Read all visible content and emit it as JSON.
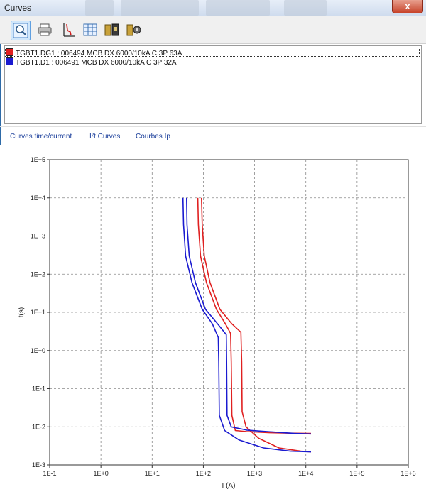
{
  "window": {
    "title": "Curves",
    "close_label": "x"
  },
  "toolbar": {
    "items": [
      {
        "name": "zoom-icon",
        "active": true
      },
      {
        "name": "print-icon",
        "active": false
      },
      {
        "name": "chart-icon",
        "active": false
      },
      {
        "name": "grid-icon",
        "active": false
      },
      {
        "name": "export-icon",
        "active": false
      },
      {
        "name": "settings-icon",
        "active": false
      }
    ]
  },
  "devices": [
    {
      "label": "TGBT1.DG1 : 006494 MCB DX 6000/10kA C 3P 63A",
      "color": "#e02020",
      "selected": true
    },
    {
      "label": "TGBT1.D1 : 006491 MCB DX 6000/10kA C 3P 32A",
      "color": "#1a1ad0",
      "selected": false
    }
  ],
  "tabs": [
    {
      "label": "Curves time/current"
    },
    {
      "label": "I²t Curves"
    },
    {
      "label": "Courbes Ip"
    }
  ],
  "chart_data": {
    "type": "line",
    "xlabel": "I (A)",
    "ylabel": "t(s)",
    "xscale": "log",
    "yscale": "log",
    "xlim": [
      0.1,
      1000000
    ],
    "ylim": [
      0.001,
      100000
    ],
    "grid": true,
    "x_ticks": [
      "1E-1",
      "1E+0",
      "1E+1",
      "1E+2",
      "1E+3",
      "1E+4",
      "1E+5",
      "1E+6"
    ],
    "y_ticks": [
      "1E-3",
      "1E-2",
      "1E-1",
      "1E+0",
      "1E+1",
      "1E+2",
      "1E+3",
      "1E+4",
      "1E+5"
    ],
    "series": [
      {
        "name": "TGBT1.DG1 : 006494 MCB DX 6000/10kA C 3P 63A",
        "color": "#e02020",
        "curves": [
          [
            [
              78,
              10000
            ],
            [
              80,
              2000
            ],
            [
              88,
              300
            ],
            [
              115,
              60
            ],
            [
              180,
              12
            ],
            [
              270,
              5
            ],
            [
              340,
              2.8
            ],
            [
              350,
              0.5
            ],
            [
              360,
              0.02
            ],
            [
              420,
              0.008
            ],
            [
              700,
              0.0075
            ],
            [
              2000,
              0.007
            ],
            [
              6000,
              0.0068
            ],
            [
              12600,
              0.0067
            ]
          ],
          [
            [
              92,
              10000
            ],
            [
              95,
              2000
            ],
            [
              104,
              300
            ],
            [
              135,
              60
            ],
            [
              210,
              12
            ],
            [
              360,
              5
            ],
            [
              540,
              3.0
            ],
            [
              560,
              0.5
            ],
            [
              570,
              0.025
            ],
            [
              680,
              0.01
            ],
            [
              1200,
              0.005
            ],
            [
              3000,
              0.0028
            ],
            [
              8000,
              0.0023
            ],
            [
              12600,
              0.0022
            ]
          ]
        ]
      },
      {
        "name": "TGBT1.D1 : 006491 MCB DX 6000/10kA C 3P 32A",
        "color": "#1a1ad0",
        "curves": [
          [
            [
              40,
              10000
            ],
            [
              41,
              2000
            ],
            [
              45,
              300
            ],
            [
              60,
              60
            ],
            [
              95,
              12
            ],
            [
              150,
              5
            ],
            [
              195,
              2.2
            ],
            [
              200,
              0.5
            ],
            [
              205,
              0.02
            ],
            [
              260,
              0.008
            ],
            [
              500,
              0.0045
            ],
            [
              1500,
              0.0028
            ],
            [
              5000,
              0.0023
            ],
            [
              12600,
              0.0022
            ]
          ],
          [
            [
              47,
              10000
            ],
            [
              48,
              2000
            ],
            [
              53,
              300
            ],
            [
              70,
              60
            ],
            [
              110,
              12
            ],
            [
              190,
              5
            ],
            [
              280,
              2.6
            ],
            [
              285,
              0.5
            ],
            [
              290,
              0.02
            ],
            [
              350,
              0.01
            ],
            [
              700,
              0.0082
            ],
            [
              2000,
              0.0074
            ],
            [
              6000,
              0.0067
            ],
            [
              12600,
              0.0065
            ]
          ]
        ]
      }
    ]
  }
}
